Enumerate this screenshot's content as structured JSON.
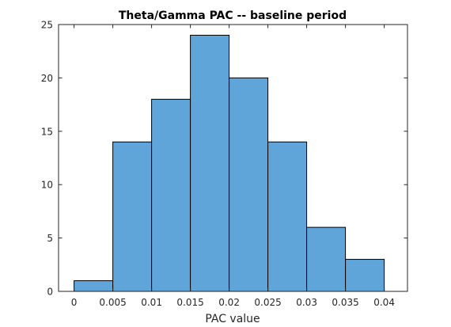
{
  "chart_data": {
    "type": "bar",
    "title": "Theta/Gamma PAC -- baseline period",
    "xlabel": "PAC value",
    "ylabel": "",
    "bin_edges": [
      0,
      0.005,
      0.01,
      0.015,
      0.02,
      0.025,
      0.03,
      0.035,
      0.04
    ],
    "values": [
      1,
      14,
      18,
      24,
      20,
      14,
      6,
      3
    ],
    "xlim": [
      -0.002,
      0.043
    ],
    "ylim": [
      0,
      25
    ],
    "x_ticks": [
      0,
      0.005,
      0.01,
      0.015,
      0.02,
      0.025,
      0.03,
      0.035,
      0.04
    ],
    "x_tick_labels": [
      "0",
      "0.005",
      "0.01",
      "0.015",
      "0.02",
      "0.025",
      "0.03",
      "0.035",
      "0.04"
    ],
    "y_ticks": [
      0,
      5,
      10,
      15,
      20,
      25
    ],
    "y_tick_labels": [
      "0",
      "5",
      "10",
      "15",
      "20",
      "25"
    ],
    "bar_color": "#5fa5d9",
    "edge_color": "#000000",
    "grid": false,
    "box": true
  }
}
